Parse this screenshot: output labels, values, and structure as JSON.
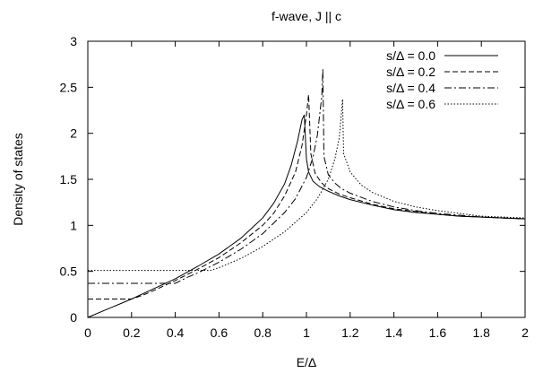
{
  "chart_data": {
    "type": "line",
    "title": "f-wave, J || c",
    "xlabel": "E/Δ",
    "ylabel": "Density of states",
    "xlim": [
      0,
      2
    ],
    "ylim": [
      0,
      3
    ],
    "xticks": [
      "0",
      "0.2",
      "0.4",
      "0.6",
      "0.8",
      "1",
      "1.2",
      "1.4",
      "1.6",
      "1.8",
      "2"
    ],
    "yticks": [
      "0",
      "0.5",
      "1",
      "1.5",
      "2",
      "2.5",
      "3"
    ],
    "legend_position": "top-right",
    "grid": false,
    "series": [
      {
        "name": "s/Δ = 0.0",
        "style": "solid",
        "x": [
          0,
          0.1,
          0.2,
          0.3,
          0.4,
          0.5,
          0.6,
          0.7,
          0.8,
          0.85,
          0.9,
          0.93,
          0.96,
          0.98,
          0.99,
          1.0,
          1.01,
          1.03,
          1.06,
          1.1,
          1.15,
          1.2,
          1.3,
          1.4,
          1.5,
          1.6,
          1.7,
          1.8,
          1.9,
          2.0
        ],
        "y": [
          0,
          0.1,
          0.2,
          0.31,
          0.42,
          0.55,
          0.69,
          0.86,
          1.08,
          1.24,
          1.45,
          1.65,
          1.92,
          2.15,
          2.2,
          1.72,
          1.58,
          1.48,
          1.42,
          1.37,
          1.32,
          1.28,
          1.22,
          1.17,
          1.14,
          1.12,
          1.1,
          1.09,
          1.08,
          1.07
        ]
      },
      {
        "name": "s/Δ = 0.2",
        "style": "dashed",
        "x": [
          0,
          0.2,
          0.25,
          0.3,
          0.4,
          0.5,
          0.6,
          0.7,
          0.8,
          0.85,
          0.9,
          0.95,
          0.98,
          1.0,
          1.01,
          1.02,
          1.04,
          1.07,
          1.1,
          1.15,
          1.2,
          1.3,
          1.4,
          1.5,
          1.6,
          1.7,
          1.8,
          1.9,
          2.0
        ],
        "y": [
          0.2,
          0.2,
          0.24,
          0.29,
          0.4,
          0.52,
          0.65,
          0.81,
          1.0,
          1.13,
          1.32,
          1.58,
          1.87,
          2.2,
          2.42,
          1.78,
          1.56,
          1.46,
          1.4,
          1.34,
          1.3,
          1.23,
          1.18,
          1.15,
          1.12,
          1.1,
          1.09,
          1.08,
          1.07
        ]
      },
      {
        "name": "s/Δ = 0.4",
        "style": "dashdot",
        "x": [
          0,
          0.4,
          0.45,
          0.5,
          0.6,
          0.7,
          0.8,
          0.9,
          0.95,
          1.0,
          1.03,
          1.05,
          1.07,
          1.075,
          1.08,
          1.1,
          1.13,
          1.16,
          1.2,
          1.3,
          1.4,
          1.5,
          1.6,
          1.7,
          1.8,
          1.9,
          2.0
        ],
        "y": [
          0.37,
          0.37,
          0.43,
          0.48,
          0.6,
          0.74,
          0.91,
          1.14,
          1.29,
          1.52,
          1.74,
          1.98,
          2.4,
          2.7,
          1.75,
          1.55,
          1.46,
          1.4,
          1.35,
          1.26,
          1.2,
          1.16,
          1.13,
          1.11,
          1.09,
          1.08,
          1.07
        ]
      },
      {
        "name": "s/Δ = 0.6",
        "style": "dotted",
        "x": [
          0,
          0.56,
          0.6,
          0.65,
          0.7,
          0.8,
          0.9,
          1.0,
          1.05,
          1.1,
          1.13,
          1.15,
          1.16,
          1.165,
          1.17,
          1.2,
          1.25,
          1.3,
          1.4,
          1.5,
          1.6,
          1.7,
          1.8,
          1.9,
          2.0
        ],
        "y": [
          0.51,
          0.51,
          0.54,
          0.59,
          0.64,
          0.77,
          0.93,
          1.14,
          1.29,
          1.5,
          1.72,
          1.95,
          2.22,
          2.37,
          1.78,
          1.58,
          1.44,
          1.36,
          1.26,
          1.2,
          1.16,
          1.13,
          1.1,
          1.09,
          1.08
        ]
      }
    ]
  }
}
